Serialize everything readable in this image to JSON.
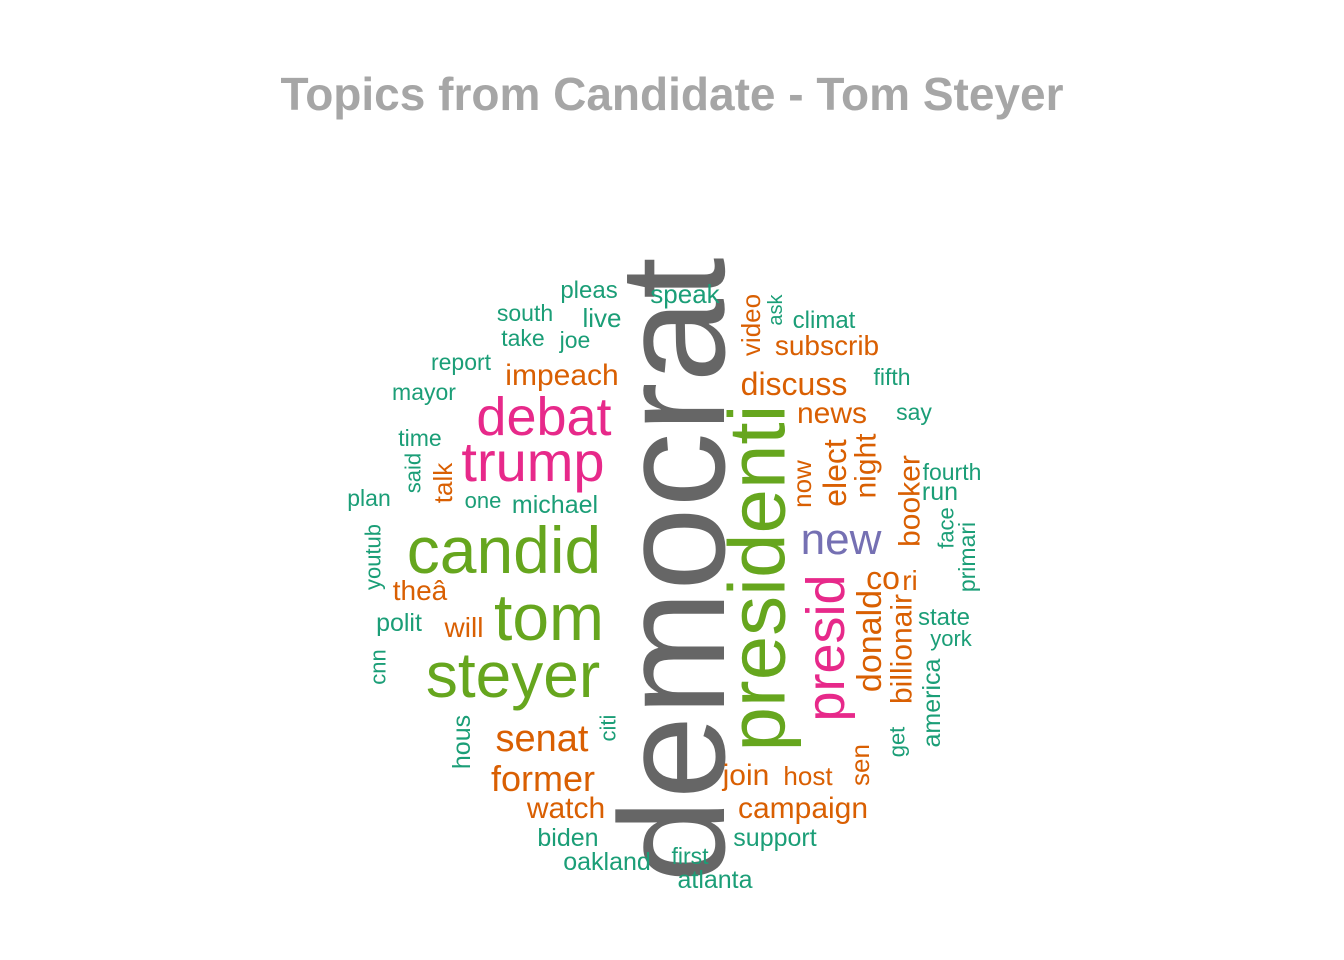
{
  "chart_data": {
    "type": "wordcloud",
    "title": "Topics from Candidate - Tom Steyer",
    "palette": {
      "gray": "#666666",
      "green": "#66a61e",
      "pink": "#e7298a",
      "purple": "#7570b3",
      "orange": "#d95f02",
      "teal": "#1b9e77"
    },
    "words": [
      {
        "text": "democrat",
        "weight": 100,
        "color": "gray",
        "rotated": true
      },
      {
        "text": "presidenti",
        "weight": 66,
        "color": "green",
        "rotated": true
      },
      {
        "text": "candid",
        "weight": 55,
        "color": "green",
        "rotated": false
      },
      {
        "text": "tom",
        "weight": 55,
        "color": "green",
        "rotated": false
      },
      {
        "text": "steyer",
        "weight": 55,
        "color": "green",
        "rotated": false
      },
      {
        "text": "trump",
        "weight": 46,
        "color": "pink",
        "rotated": false
      },
      {
        "text": "debat",
        "weight": 46,
        "color": "pink",
        "rotated": false
      },
      {
        "text": "presid",
        "weight": 46,
        "color": "pink",
        "rotated": true
      },
      {
        "text": "new",
        "weight": 38,
        "color": "purple",
        "rotated": false
      },
      {
        "text": "senat",
        "weight": 30,
        "color": "orange",
        "rotated": false
      },
      {
        "text": "former",
        "weight": 28,
        "color": "orange",
        "rotated": false
      },
      {
        "text": "donald",
        "weight": 27,
        "color": "orange",
        "rotated": true
      },
      {
        "text": "billionair",
        "weight": 25,
        "color": "orange",
        "rotated": true
      },
      {
        "text": "discuss",
        "weight": 25,
        "color": "orange",
        "rotated": false
      },
      {
        "text": "elect",
        "weight": 25,
        "color": "orange",
        "rotated": true
      },
      {
        "text": "co",
        "weight": 25,
        "color": "orange",
        "rotated": false
      },
      {
        "text": "night",
        "weight": 24,
        "color": "orange",
        "rotated": true
      },
      {
        "text": "booker",
        "weight": 24,
        "color": "orange",
        "rotated": true
      },
      {
        "text": "news",
        "weight": 24,
        "color": "orange",
        "rotated": false
      },
      {
        "text": "impeach",
        "weight": 24,
        "color": "orange",
        "rotated": false
      },
      {
        "text": "join",
        "weight": 24,
        "color": "orange",
        "rotated": false
      },
      {
        "text": "watch",
        "weight": 24,
        "color": "orange",
        "rotated": false
      },
      {
        "text": "campaign",
        "weight": 24,
        "color": "orange",
        "rotated": false
      },
      {
        "text": "subscrib",
        "weight": 23,
        "color": "orange",
        "rotated": false
      },
      {
        "text": "theâ",
        "weight": 23,
        "color": "orange",
        "rotated": false
      },
      {
        "text": "will",
        "weight": 23,
        "color": "orange",
        "rotated": false
      },
      {
        "text": "talk",
        "weight": 22,
        "color": "orange",
        "rotated": true
      },
      {
        "text": "video",
        "weight": 22,
        "color": "orange",
        "rotated": true
      },
      {
        "text": "now",
        "weight": 22,
        "color": "orange",
        "rotated": true
      },
      {
        "text": "host",
        "weight": 22,
        "color": "orange",
        "rotated": false
      },
      {
        "text": "sen",
        "weight": 22,
        "color": "orange",
        "rotated": true
      },
      {
        "text": "ri",
        "weight": 22,
        "color": "orange",
        "rotated": false
      },
      {
        "text": "speak",
        "weight": 20,
        "color": "teal",
        "rotated": false
      },
      {
        "text": "live",
        "weight": 20,
        "color": "teal",
        "rotated": false
      },
      {
        "text": "pleas",
        "weight": 19,
        "color": "teal",
        "rotated": false
      },
      {
        "text": "climat",
        "weight": 19,
        "color": "teal",
        "rotated": false
      },
      {
        "text": "south",
        "weight": 18,
        "color": "teal",
        "rotated": false
      },
      {
        "text": "take",
        "weight": 18,
        "color": "teal",
        "rotated": false
      },
      {
        "text": "joe",
        "weight": 18,
        "color": "teal",
        "rotated": false
      },
      {
        "text": "report",
        "weight": 18,
        "color": "teal",
        "rotated": false
      },
      {
        "text": "mayor",
        "weight": 18,
        "color": "teal",
        "rotated": false
      },
      {
        "text": "time",
        "weight": 18,
        "color": "teal",
        "rotated": false
      },
      {
        "text": "said",
        "weight": 18,
        "color": "teal",
        "rotated": true
      },
      {
        "text": "plan",
        "weight": 18,
        "color": "teal",
        "rotated": false
      },
      {
        "text": "one",
        "weight": 18,
        "color": "teal",
        "rotated": false
      },
      {
        "text": "michael",
        "weight": 20,
        "color": "teal",
        "rotated": false
      },
      {
        "text": "youtub",
        "weight": 18,
        "color": "teal",
        "rotated": true
      },
      {
        "text": "polit",
        "weight": 20,
        "color": "teal",
        "rotated": false
      },
      {
        "text": "cnn",
        "weight": 18,
        "color": "teal",
        "rotated": true
      },
      {
        "text": "hous",
        "weight": 20,
        "color": "teal",
        "rotated": true
      },
      {
        "text": "citi",
        "weight": 18,
        "color": "teal",
        "rotated": true
      },
      {
        "text": "biden",
        "weight": 20,
        "color": "teal",
        "rotated": false
      },
      {
        "text": "oakland",
        "weight": 20,
        "color": "teal",
        "rotated": false
      },
      {
        "text": "first",
        "weight": 18,
        "color": "teal",
        "rotated": false
      },
      {
        "text": "atlanta",
        "weight": 20,
        "color": "teal",
        "rotated": false
      },
      {
        "text": "support",
        "weight": 20,
        "color": "teal",
        "rotated": false
      },
      {
        "text": "get",
        "weight": 18,
        "color": "teal",
        "rotated": true
      },
      {
        "text": "america",
        "weight": 20,
        "color": "teal",
        "rotated": true
      },
      {
        "text": "york",
        "weight": 18,
        "color": "teal",
        "rotated": false
      },
      {
        "text": "state",
        "weight": 19,
        "color": "teal",
        "rotated": false
      },
      {
        "text": "primari",
        "weight": 18,
        "color": "teal",
        "rotated": true
      },
      {
        "text": "face",
        "weight": 18,
        "color": "teal",
        "rotated": true
      },
      {
        "text": "run",
        "weight": 20,
        "color": "teal",
        "rotated": false
      },
      {
        "text": "fourth",
        "weight": 19,
        "color": "teal",
        "rotated": false
      },
      {
        "text": "say",
        "weight": 18,
        "color": "teal",
        "rotated": false
      },
      {
        "text": "fifth",
        "weight": 18,
        "color": "teal",
        "rotated": false
      },
      {
        "text": "ask",
        "weight": 17,
        "color": "teal",
        "rotated": true
      }
    ]
  }
}
